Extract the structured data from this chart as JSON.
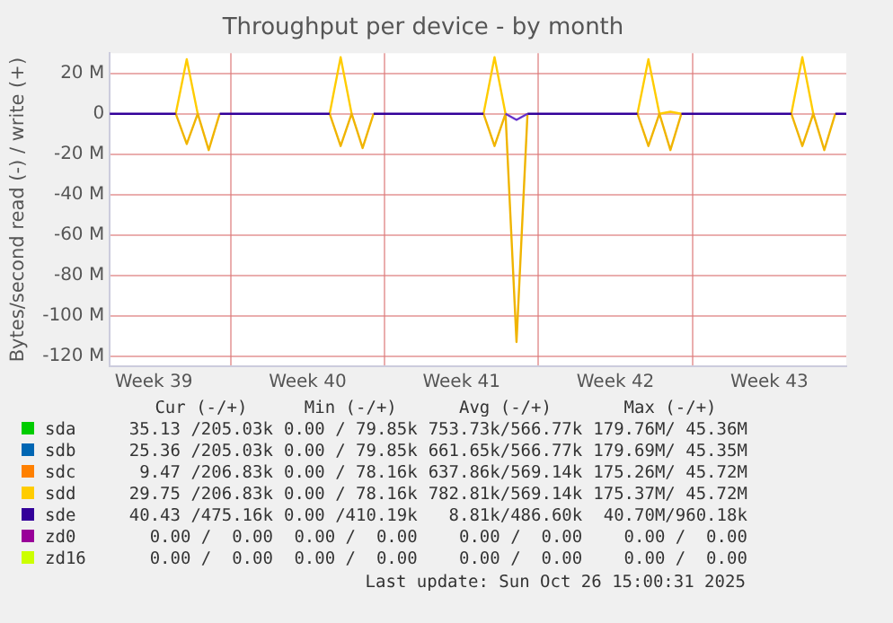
{
  "chart_data": {
    "type": "line",
    "title": "Throughput per device - by month",
    "ylabel": "Bytes/second read (-) / write (+)",
    "categories": [
      null,
      null,
      null,
      null,
      "Week 39",
      null,
      null,
      null,
      null,
      null,
      null,
      null,
      null,
      null,
      null,
      null,
      null,
      null,
      "Week 40",
      null,
      null,
      null,
      null,
      null,
      null,
      null,
      null,
      null,
      null,
      null,
      null,
      null,
      "Week 41",
      null,
      null,
      null,
      null,
      null,
      null,
      null,
      null,
      null,
      null,
      null,
      null,
      null,
      "Week 42",
      null,
      null,
      null,
      null,
      null,
      null,
      null,
      null,
      null,
      null,
      null,
      null,
      null,
      "Week 43",
      null,
      null,
      null,
      null,
      null,
      null,
      null
    ],
    "ylim": [
      -125,
      30
    ],
    "yticks": [
      {
        "value": -120,
        "label": "-120 M"
      },
      {
        "value": -100,
        "label": "-100 M"
      },
      {
        "value": -80,
        "label": "-80 M"
      },
      {
        "value": -60,
        "label": "-60 M"
      },
      {
        "value": -40,
        "label": "-40 M"
      },
      {
        "value": -20,
        "label": "-20 M"
      },
      0,
      {
        "value": 20,
        "label": "20 M"
      }
    ],
    "grid": true,
    "legend": "bottom",
    "series": [
      {
        "name": "sda",
        "color": "#00cc00",
        "values": [
          null,
          null,
          null,
          null,
          null,
          null,
          null,
          null,
          null,
          null,
          null,
          null,
          null,
          null,
          null,
          null,
          null,
          null,
          null,
          null,
          null,
          null,
          null,
          null,
          null,
          null,
          null,
          null,
          null,
          null,
          null,
          null,
          null,
          null,
          null,
          null,
          null,
          null,
          null,
          null,
          null,
          null,
          null,
          null,
          null,
          null,
          null,
          null,
          null,
          null,
          null,
          null,
          null,
          null,
          null,
          null,
          null,
          null,
          null,
          null,
          null,
          null,
          null,
          null,
          null,
          null,
          null,
          null
        ]
      },
      {
        "name": "sdb",
        "color": "#0066b3",
        "values": [
          null,
          null,
          null,
          null,
          null,
          null,
          null,
          null,
          null,
          null,
          null,
          null,
          null,
          null,
          null,
          null,
          null,
          null,
          null,
          null,
          null,
          null,
          null,
          null,
          null,
          null,
          null,
          null,
          null,
          null,
          null,
          null,
          null,
          null,
          null,
          null,
          null,
          null,
          null,
          null,
          null,
          null,
          null,
          null,
          null,
          null,
          null,
          null,
          null,
          null,
          null,
          null,
          null,
          null,
          null,
          null,
          null,
          null,
          null,
          null,
          null,
          null,
          null,
          null,
          null,
          null,
          null,
          null
        ]
      },
      {
        "name": "sdc",
        "color": "#ff8000",
        "values": [
          null,
          null,
          null,
          null,
          null,
          null,
          null,
          null,
          null,
          null,
          null,
          null,
          null,
          null,
          null,
          null,
          null,
          null,
          null,
          null,
          null,
          null,
          null,
          null,
          null,
          null,
          null,
          null,
          null,
          null,
          null,
          null,
          null,
          null,
          null,
          null,
          null,
          null,
          null,
          null,
          null,
          null,
          null,
          null,
          null,
          null,
          null,
          null,
          null,
          null,
          null,
          null,
          null,
          null,
          null,
          null,
          null,
          null,
          null,
          null,
          null,
          null,
          null,
          null,
          null,
          null,
          null,
          null
        ]
      },
      {
        "name": "sdd",
        "color": "#ffcc00",
        "values": [
          null,
          null,
          null,
          null,
          null,
          null,
          0,
          27,
          0,
          null,
          null,
          null,
          null,
          null,
          null,
          null,
          null,
          null,
          null,
          null,
          0,
          28,
          0,
          null,
          null,
          null,
          null,
          null,
          null,
          null,
          null,
          null,
          null,
          null,
          0,
          28,
          0,
          null,
          null,
          null,
          null,
          null,
          null,
          null,
          null,
          null,
          null,
          null,
          0,
          27,
          0,
          1,
          0,
          null,
          null,
          null,
          null,
          null,
          null,
          null,
          null,
          null,
          0,
          28,
          0,
          null,
          null,
          null
        ]
      },
      {
        "color": "#f0b400",
        "values": [
          null,
          null,
          null,
          null,
          null,
          null,
          0,
          -15,
          0,
          -18,
          0,
          null,
          null,
          null,
          null,
          null,
          null,
          null,
          null,
          null,
          0,
          -16,
          0,
          -17,
          0,
          null,
          null,
          null,
          null,
          null,
          null,
          null,
          null,
          null,
          0,
          -16,
          0,
          -113,
          0,
          null,
          null,
          null,
          null,
          null,
          null,
          null,
          null,
          null,
          0,
          -16,
          0,
          -18,
          0,
          null,
          null,
          null,
          null,
          null,
          null,
          null,
          null,
          null,
          0,
          -16,
          0,
          -18,
          0,
          null
        ]
      },
      {
        "name": "sde",
        "color": "#330099",
        "values": [
          0,
          0,
          0,
          0,
          0,
          0,
          0,
          null,
          null,
          null,
          0,
          0,
          0,
          0,
          0,
          0,
          0,
          0,
          0,
          0,
          0,
          null,
          null,
          null,
          0,
          0,
          0,
          0,
          0,
          0,
          0,
          0,
          0,
          0,
          0,
          null,
          null,
          null,
          0,
          0,
          0,
          0,
          0,
          0,
          0,
          0,
          0,
          0,
          0,
          null,
          null,
          null,
          0,
          0,
          0,
          0,
          0,
          0,
          0,
          0,
          0,
          0,
          0,
          null,
          null,
          null,
          0,
          0
        ]
      },
      {
        "color": "#6633cc",
        "values": [
          null,
          null,
          null,
          null,
          null,
          null,
          null,
          null,
          null,
          null,
          null,
          null,
          null,
          null,
          null,
          null,
          null,
          null,
          null,
          null,
          null,
          null,
          null,
          null,
          null,
          null,
          null,
          null,
          null,
          null,
          null,
          null,
          null,
          null,
          null,
          null,
          0,
          -3,
          0,
          null,
          null,
          null,
          null,
          null,
          null,
          null,
          null,
          null,
          null,
          null,
          null,
          null,
          null,
          null,
          null,
          null,
          null,
          null,
          null,
          null,
          null,
          null,
          null,
          null,
          null,
          null,
          null,
          null
        ]
      },
      {
        "name": "zd0",
        "color": "#990099",
        "values": [
          null,
          null,
          null,
          null,
          null,
          null,
          null,
          null,
          null,
          null,
          null,
          null,
          null,
          null,
          null,
          null,
          null,
          null,
          null,
          null,
          null,
          null,
          null,
          null,
          null,
          null,
          null,
          null,
          null,
          null,
          null,
          null,
          null,
          null,
          null,
          null,
          null,
          null,
          null,
          null,
          null,
          null,
          null,
          null,
          null,
          null,
          null,
          null,
          null,
          null,
          null,
          null,
          null,
          null,
          null,
          null,
          null,
          null,
          null,
          null,
          null,
          null,
          null,
          null,
          null,
          null,
          null,
          null
        ]
      },
      {
        "name": "zd16",
        "color": "#ccff00",
        "values": [
          null,
          null,
          null,
          null,
          null,
          null,
          null,
          null,
          null,
          null,
          null,
          null,
          null,
          null,
          null,
          null,
          null,
          null,
          null,
          null,
          null,
          null,
          null,
          null,
          null,
          null,
          null,
          null,
          null,
          null,
          null,
          null,
          null,
          null,
          null,
          null,
          null,
          null,
          null,
          null,
          null,
          null,
          null,
          null,
          null,
          null,
          null,
          null,
          null,
          null,
          null,
          null,
          null,
          null,
          null,
          null,
          null,
          null,
          null,
          null,
          null,
          null,
          null,
          null,
          null,
          null,
          null,
          null
        ]
      }
    ],
    "annotations": [
      "Cur (-/+)",
      "Min (-/+)",
      "Avg (-/+)",
      "Max (-/+)",
      "35.13 /205.03k",
      "0.00 / 79.85k",
      "753.73k/566.77k",
      "179.76M/ 45.36M",
      "25.36 /205.03k",
      "0.00 / 79.85k",
      "661.65k/566.77k",
      "179.69M/ 45.35M",
      "9.47 /206.83k",
      "0.00 / 78.16k",
      "637.86k/569.14k",
      "175.26M/ 45.72M",
      "29.75 /206.83k",
      "0.00 / 78.16k",
      "782.81k/569.14k",
      "175.37M/ 45.72M",
      "40.43 /475.16k",
      "0.00 /410.19k",
      "8.81k/486.60k",
      "40.70M/960.18k",
      "0.00 /  0.00",
      "0.00 /  0.00",
      "0.00 /  0.00",
      "0.00 /  0.00",
      "0.00 /  0.00",
      "0.00 /  0.00",
      "0.00 /  0.00",
      "0.00 /  0.00",
      "Last update: Sun Oct 26 15:00:31 2025"
    ]
  }
}
